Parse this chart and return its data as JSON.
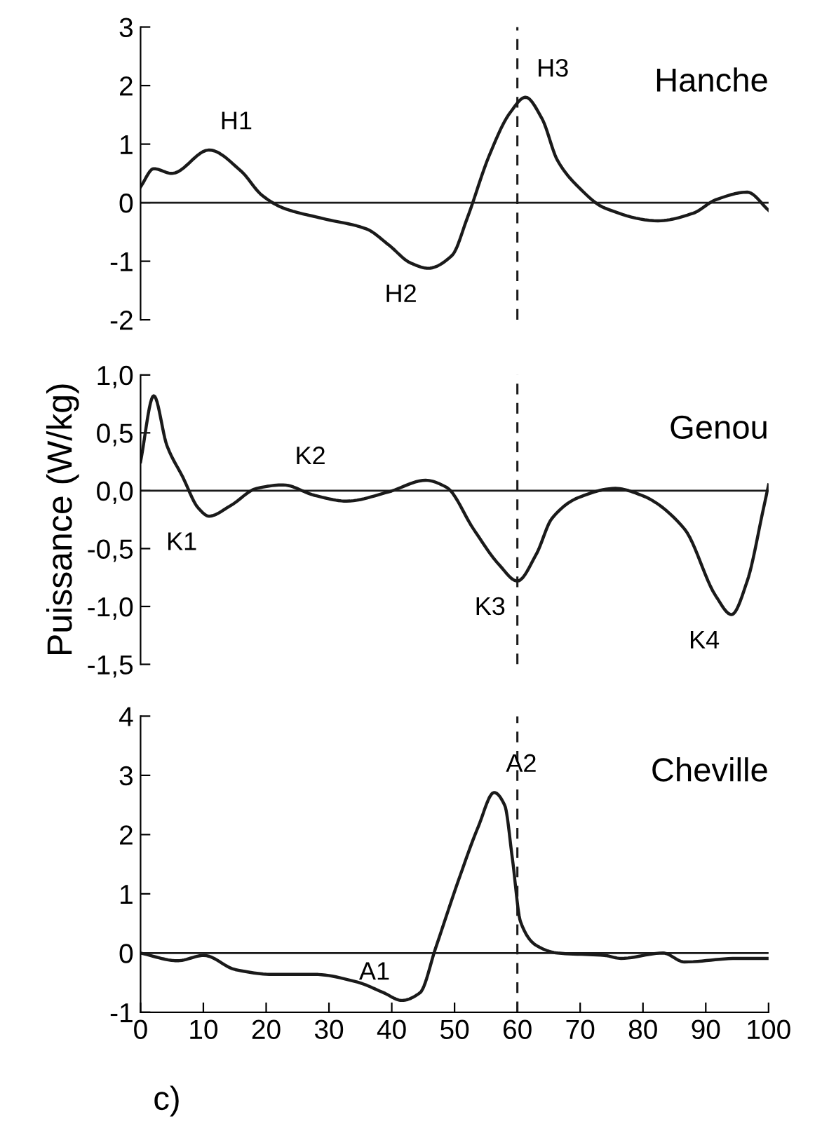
{
  "chart_data": [
    {
      "type": "line",
      "title": "Hanche",
      "xlim": [
        0,
        100
      ],
      "ylim": [
        -2,
        3
      ],
      "yticks": [
        -2,
        -1,
        0,
        1,
        2,
        3
      ],
      "tick_labels": "y",
      "grid": false,
      "series": [
        {
          "color": "#1a1a1a",
          "x": [
            0,
            2.1,
            5,
            10.9,
            16,
            19.3,
            22.7,
            29,
            36,
            39.5,
            43,
            45.8,
            49.6,
            52,
            55.5,
            58.8,
            61.3,
            63.9,
            66.4,
            69.7,
            73.9,
            82.4,
            88,
            91.6,
            96.6,
            100
          ],
          "values": [
            0.27,
            0.58,
            0.5,
            0.9,
            0.54,
            0.13,
            -0.09,
            -0.27,
            -0.45,
            -0.72,
            -1.03,
            -1.12,
            -0.9,
            -0.27,
            0.8,
            1.53,
            1.8,
            1.44,
            0.72,
            0.27,
            -0.09,
            -0.31,
            -0.18,
            0.05,
            0.18,
            -0.13
          ]
        }
      ],
      "ref_lines": [
        {
          "axis": "y",
          "value": 0,
          "color": "#1a1a1a",
          "line_style": "solid"
        },
        {
          "axis": "x",
          "value": 60,
          "color": "#1a1a1a",
          "line_style": "dashed"
        }
      ],
      "annotations": [
        {
          "text": "H1",
          "x": 10.9,
          "y": 0.9
        },
        {
          "text": "H2",
          "x": 45.8,
          "y": -1.12
        },
        {
          "text": "H3",
          "x": 61.3,
          "y": 1.8
        }
      ]
    },
    {
      "type": "line",
      "title": "Genou",
      "ylabel": "Puissance (W/kg)",
      "xlim": [
        0,
        100
      ],
      "ylim": [
        -1.5,
        1.0
      ],
      "yticks": [
        {
          "value": -1.5,
          "label": "-1,5"
        },
        {
          "value": -1.0,
          "label": "-1,0"
        },
        {
          "value": -0.5,
          "label": "-0,5"
        },
        {
          "value": 0,
          "label": "0,0"
        },
        {
          "value": 0.5,
          "label": "0,5"
        },
        {
          "value": 1.0,
          "label": "1,0"
        }
      ],
      "tick_labels": "y",
      "grid": false,
      "series": [
        {
          "color": "#1a1a1a",
          "x": [
            0,
            2.1,
            4.2,
            6.7,
            9.2,
            10.9,
            14.3,
            18.5,
            22.7,
            27.7,
            32.8,
            39.5,
            45.4,
            48.7,
            53,
            57.1,
            60,
            63,
            65.5,
            69.7,
            75.6,
            79.8,
            86.6,
            91.6,
            94.1,
            96.6,
            99.2,
            100
          ],
          "values": [
            0.25,
            0.82,
            0.39,
            0.12,
            -0.15,
            -0.22,
            -0.13,
            0.02,
            0.05,
            -0.04,
            -0.09,
            -0.01,
            0.09,
            0.03,
            -0.33,
            -0.64,
            -0.78,
            -0.55,
            -0.24,
            -0.06,
            0.02,
            -0.04,
            -0.33,
            -0.91,
            -1.07,
            -0.78,
            -0.15,
            0.05
          ]
        }
      ],
      "ref_lines": [
        {
          "axis": "y",
          "value": 0,
          "color": "#1a1a1a",
          "line_style": "solid"
        },
        {
          "axis": "x",
          "value": 60,
          "color": "#1a1a1a",
          "line_style": "dashed"
        }
      ],
      "annotations": [
        {
          "text": "K1",
          "x": 10.9,
          "y": -0.22
        },
        {
          "text": "K2",
          "x": 22.7,
          "y": 0.05
        },
        {
          "text": "K3",
          "x": 60,
          "y": -0.78
        },
        {
          "text": "K4",
          "x": 94.1,
          "y": -1.07
        }
      ]
    },
    {
      "type": "line",
      "title": "Cheville",
      "xlim": [
        0,
        100
      ],
      "xticks": [
        0,
        10,
        20,
        30,
        40,
        50,
        60,
        70,
        80,
        90,
        100
      ],
      "ylim": [
        -1,
        4
      ],
      "yticks": [
        -1,
        0,
        1,
        2,
        3,
        4
      ],
      "grid": false,
      "series": [
        {
          "color": "#1a1a1a",
          "x": [
            0,
            5.9,
            10.1,
            15.1,
            21,
            27.7,
            34.5,
            38.7,
            41.6,
            44.5,
            47,
            50.4,
            53.8,
            56.3,
            58,
            59.2,
            60.5,
            63,
            66.4,
            73.9,
            76.5,
            83.2,
            86.6,
            95,
            100
          ],
          "values": [
            0,
            -0.13,
            -0.04,
            -0.28,
            -0.36,
            -0.36,
            -0.49,
            -0.67,
            -0.8,
            -0.67,
            0.09,
            1.16,
            2.14,
            2.71,
            2.49,
            1.6,
            0.53,
            0.13,
            0,
            -0.04,
            -0.09,
            0,
            -0.15,
            -0.09,
            -0.09
          ]
        }
      ],
      "ref_lines": [
        {
          "axis": "y",
          "value": 0,
          "color": "#1a1a1a",
          "line_style": "solid"
        },
        {
          "axis": "x",
          "value": 60,
          "color": "#1a1a1a",
          "line_style": "dashed"
        }
      ],
      "annotations": [
        {
          "text": "A1",
          "x": 41.6,
          "y": -0.8
        },
        {
          "text": "A2",
          "x": 56.3,
          "y": 2.71
        },
        "c)"
      ]
    }
  ]
}
